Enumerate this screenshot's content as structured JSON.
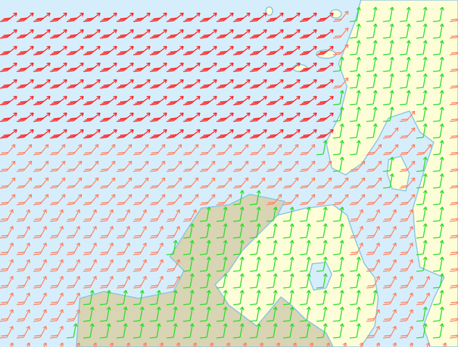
{
  "map": {
    "type": "wind-barb-map",
    "colors": {
      "sea": "#d6eefc",
      "coast": "#8cc4e0",
      "land_primary": "#fdfdd8",
      "land_secondary": "#d8d4b4"
    },
    "barbs": {
      "strong_color": "#ff1a1a",
      "moderate_color": "#ff8060",
      "light_color": "#22dd22",
      "strong_barb_count": 3,
      "moderate_barb_count": 2,
      "light_barb_count": 1,
      "direction": "from south-west"
    }
  }
}
